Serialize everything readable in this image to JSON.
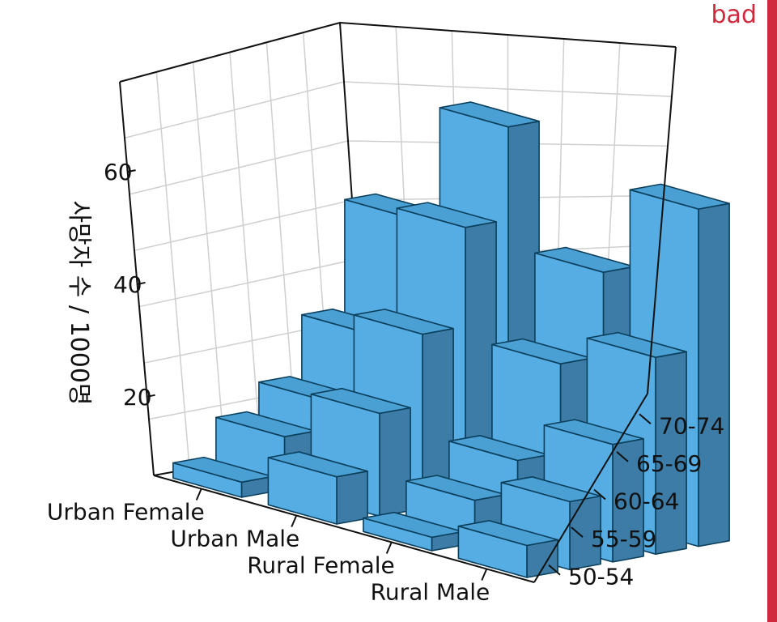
{
  "badge": {
    "text": "bad"
  },
  "colors": {
    "bar_top": "#4a9fd3",
    "bar_front": "#55ade3",
    "bar_side": "#3c7ca6",
    "bar_edge": "#0b3f5c",
    "grid": "#cfcfcf",
    "axis": "#111111",
    "badge": "#d0283c"
  },
  "chart_data": {
    "type": "bar3d",
    "title": "",
    "zlabel": "사망자 수 / 1000명",
    "zlim": [
      6,
      76
    ],
    "z_ticks": [
      20,
      40,
      60
    ],
    "groups": [
      "Urban Female",
      "Urban Male",
      "Rural Female",
      "Rural Male"
    ],
    "age_groups": [
      "50-54",
      "55-59",
      "60-64",
      "65-69",
      "70-74"
    ],
    "series": [
      {
        "name": "Urban Female",
        "values": [
          8.7,
          15.4,
          20.3,
          30.9,
          50.0
        ]
      },
      {
        "name": "Urban Male",
        "values": [
          14.4,
          24.3,
          37.0,
          54.6,
          71.1
        ]
      },
      {
        "name": "Rural Female",
        "values": [
          8.4,
          13.6,
          19.3,
          35.1,
          50.0
        ]
      },
      {
        "name": "Rural Male",
        "values": [
          11.7,
          18.1,
          26.9,
          41.0,
          66.0
        ]
      }
    ],
    "grid": true
  }
}
